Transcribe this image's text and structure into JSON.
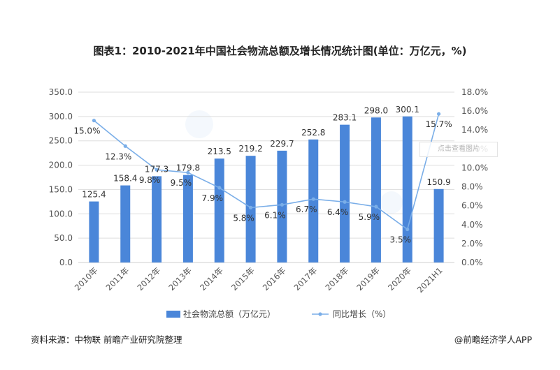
{
  "page": {
    "title": "图表1：2010-2021年中国社会物流总额及增长情况统计图(单位：万亿元，%)",
    "source": "资料来源：中物联 前瞻产业研究院整理",
    "brand": "@前瞻经济学人APP",
    "view_badge": "点击查看图片"
  },
  "colors": {
    "bar": "#4a86d9",
    "line": "#7aaee8",
    "grid": "#dddddd",
    "text": "#555555"
  },
  "chart_data": {
    "type": "bar",
    "categories": [
      "2010年",
      "2011年",
      "2012年",
      "2013年",
      "2014年",
      "2015年",
      "2016年",
      "2017年",
      "2018年",
      "2019年",
      "2020年",
      "2021H1"
    ],
    "series": [
      {
        "name": "社会物流总额（万亿元）",
        "type": "bar",
        "axis": "left",
        "values": [
          125.4,
          158.4,
          177.3,
          179.8,
          213.5,
          219.2,
          229.7,
          252.8,
          283.1,
          298.0,
          300.1,
          150.9
        ],
        "labels": [
          "125.4",
          "158.4",
          "177.3",
          "179.8",
          "213.5",
          "219.2",
          "229.7",
          "252.8",
          "283.1",
          "298.0",
          "300.1",
          "150.9"
        ]
      },
      {
        "name": "同比增长（%）",
        "type": "line",
        "axis": "right",
        "values": [
          15.0,
          12.3,
          9.8,
          9.5,
          7.9,
          5.8,
          6.1,
          6.7,
          6.4,
          5.9,
          3.5,
          15.7
        ],
        "labels": [
          "15.0%",
          "12.3%",
          "9.8%",
          "9.5%",
          "7.9%",
          "5.8%",
          "6.1%",
          "6.7%",
          "6.4%",
          "5.9%",
          "3.5%",
          "15.7%"
        ]
      }
    ],
    "y_left": {
      "min": 0,
      "max": 350,
      "step": 50,
      "ticks": [
        "0.0",
        "50.0",
        "100.0",
        "150.0",
        "200.0",
        "250.0",
        "300.0",
        "350.0"
      ]
    },
    "y_right": {
      "min": 0,
      "max": 18,
      "step": 2,
      "ticks": [
        "0.0%",
        "2.0%",
        "4.0%",
        "6.0%",
        "8.0%",
        "10.0%",
        "12.0%",
        "14.0%",
        "16.0%",
        "18.0%"
      ]
    },
    "grid": true,
    "legend": "bottom"
  }
}
